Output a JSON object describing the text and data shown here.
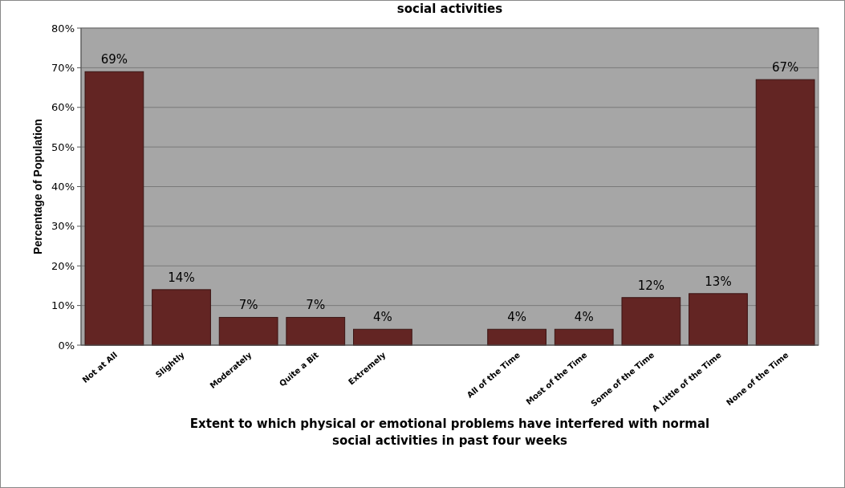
{
  "chart_data": {
    "type": "bar",
    "title": "social activities",
    "xlabel": "Extent to which physical or emotional problems have interfered with normal social activities in past four weeks",
    "ylabel": "Percentage of Population",
    "categories": [
      "Not at All",
      "Slightly",
      "Moderately",
      "Quite a Bit",
      "Extremely",
      null,
      "All of the Time",
      "Most of the Time",
      "Some of the Time",
      "A Little of the Time",
      "None of the Time"
    ],
    "series": [
      {
        "color": "#632523",
        "values": [
          69,
          14,
          7,
          7,
          4,
          null,
          4,
          4,
          12,
          13,
          67
        ],
        "value_labels": [
          "69%",
          "14%",
          "7%",
          "7%",
          "4%",
          null,
          "4%",
          "4%",
          "12%",
          "13%",
          "67%"
        ]
      }
    ],
    "ylim": [
      0,
      80
    ],
    "yticks": [
      {
        "value": 0,
        "label": "0%"
      },
      {
        "value": 10,
        "label": "10%"
      },
      {
        "value": 20,
        "label": "20%"
      },
      {
        "value": 30,
        "label": "30%"
      },
      {
        "value": 40,
        "label": "40%"
      },
      {
        "value": 50,
        "label": "50%"
      },
      {
        "value": 60,
        "label": "60%"
      },
      {
        "value": 70,
        "label": "70%"
      },
      {
        "value": 80,
        "label": "80%"
      }
    ],
    "grid": "y"
  }
}
